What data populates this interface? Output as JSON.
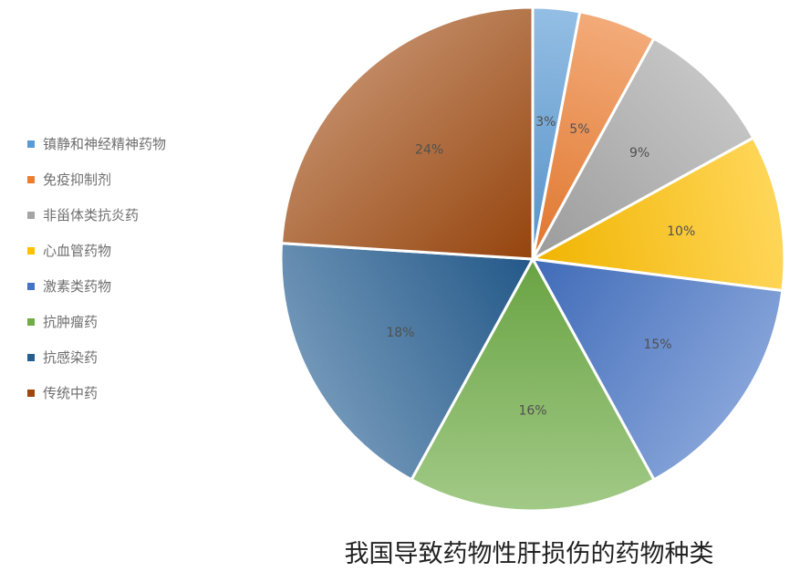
{
  "chart_data": {
    "type": "pie",
    "title": "我国导致药物性肝损伤的药物种类",
    "legend_position": "left",
    "categories": [
      "镇静和神经精神药物",
      "免疫抑制剂",
      "非甾体类抗炎药",
      "心血管药物",
      "激素类药物",
      "抗肿瘤药",
      "抗感染药",
      "传统中药"
    ],
    "values": [
      3,
      5,
      9,
      10,
      15,
      16,
      18,
      24
    ],
    "data_labels": [
      "3%",
      "5%",
      "9%",
      "10%",
      "15%",
      "16%",
      "18%",
      "24%"
    ],
    "colors": [
      "#5b9bd5",
      "#ed7d31",
      "#a5a5a5",
      "#ffc000",
      "#4472c4",
      "#70ad47",
      "#255e91",
      "#9e480e"
    ]
  }
}
